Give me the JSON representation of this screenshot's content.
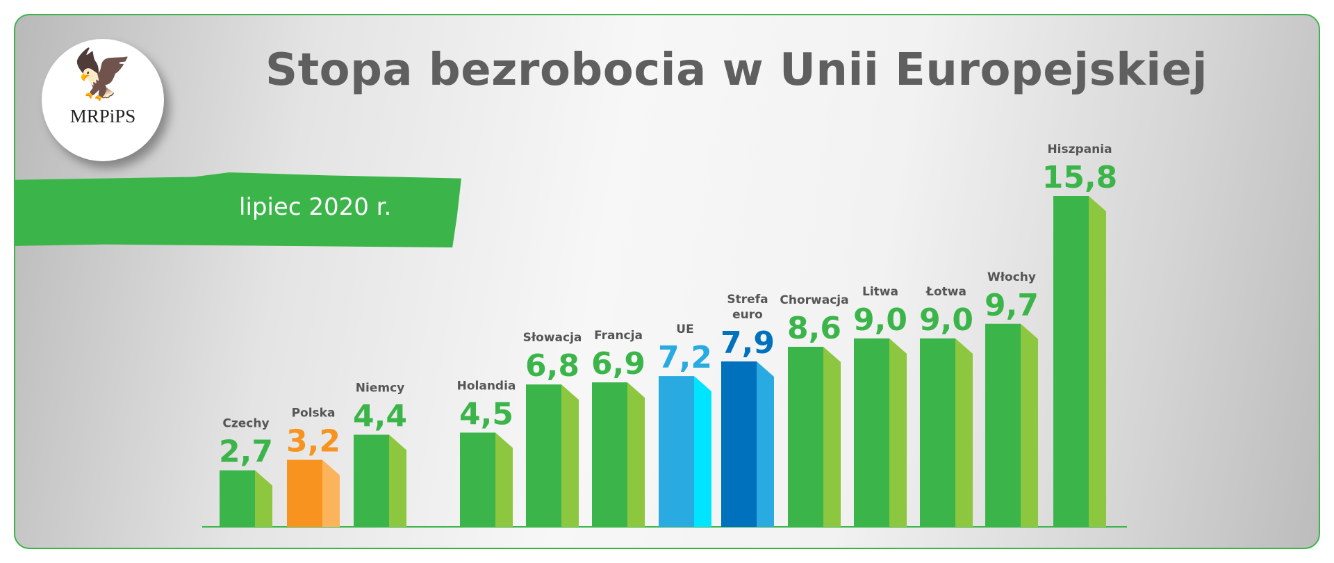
{
  "logo": {
    "text": "MRPiPS",
    "icon": "polish-eagle-emblem"
  },
  "header": {
    "title": "Stopa bezrobocia w Unii Europejskiej",
    "period": "lipiec 2020 r."
  },
  "colors": {
    "green": "#3bb54a",
    "green_side": "#8dc63f",
    "orange": "#f7931e",
    "orange_side": "#fbb45c",
    "light_blue": "#29abe2",
    "light_blue_side": "#00e5ff",
    "dark_blue": "#0071bc",
    "dark_blue_side": "#29abe2",
    "label": "#555555"
  },
  "chart_data": {
    "type": "bar",
    "title": "Stopa bezrobocia w Unii Europejskiej",
    "subtitle": "lipiec 2020 r.",
    "categories": [
      "Czechy",
      "Polska",
      "Niemcy",
      "Holandia",
      "Słowacja",
      "Francja",
      "UE",
      "Strefa euro",
      "Chorwacja",
      "Litwa",
      "Łotwa",
      "Włochy",
      "Hiszpania"
    ],
    "values": [
      2.7,
      3.2,
      4.4,
      4.5,
      6.8,
      6.9,
      7.2,
      7.9,
      8.6,
      9.0,
      9.0,
      9.7,
      15.8
    ],
    "value_labels": [
      "2,7",
      "3,2",
      "4,4",
      "4,5",
      "6,8",
      "6,9",
      "7,2",
      "7,9",
      "8,6",
      "9,0",
      "9,0",
      "9,7",
      "15,8"
    ],
    "bar_colors": [
      "green",
      "orange",
      "green",
      "green",
      "green",
      "green",
      "light_blue",
      "dark_blue",
      "green",
      "green",
      "green",
      "green",
      "green"
    ],
    "ylim": [
      0,
      15.8
    ],
    "grid": false,
    "legend": "none"
  }
}
